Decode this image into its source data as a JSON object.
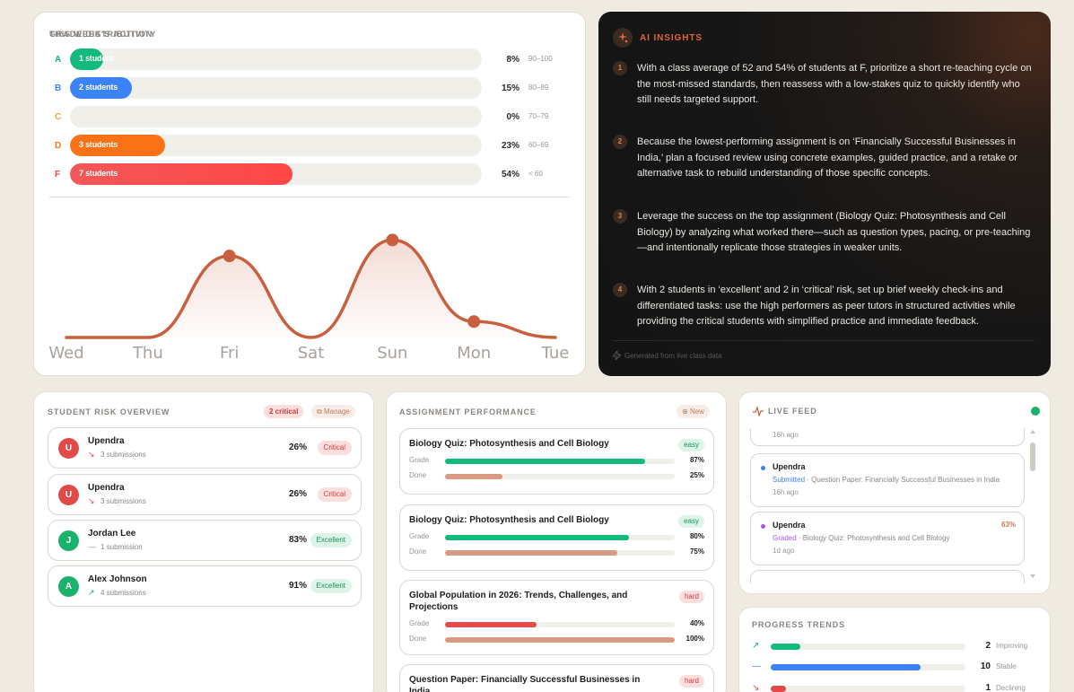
{
  "grade_distribution": {
    "title": "GRADE DISTRIBUTION",
    "rows": [
      {
        "letter": "A",
        "label": "1 student",
        "pct": "8%",
        "range": "90–100",
        "fraction": 0.08,
        "color": "#14b97c",
        "letter_color": "#14b97c"
      },
      {
        "letter": "B",
        "label": "2 students",
        "pct": "15%",
        "range": "80–89",
        "fraction": 0.15,
        "color": "#3b82f6",
        "letter_color": "#3b82f6"
      },
      {
        "letter": "C",
        "label": "",
        "pct": "0%",
        "range": "70–79",
        "fraction": 0.0,
        "color": "#f59e0b",
        "letter_color": "#f0a531"
      },
      {
        "letter": "D",
        "label": "3 students",
        "pct": "23%",
        "range": "60–69",
        "fraction": 0.23,
        "color": "#f97316",
        "letter_color": "#f97316"
      },
      {
        "letter": "F",
        "label": "7 students",
        "pct": "54%",
        "range": "< 60",
        "fraction": 0.54,
        "color": "#f03e3e",
        "letter_color": "#ef4444"
      }
    ]
  },
  "activity": {
    "title": "THIS WEEK'S ACTIVITY",
    "days": [
      "Wed",
      "Thu",
      "Fri",
      "Sat",
      "Sun",
      "Mon",
      "Tue"
    ],
    "values": [
      0,
      0,
      4.1,
      0,
      4.9,
      0.8,
      0
    ],
    "markers": [
      2,
      4,
      5
    ],
    "color": "#c8603f"
  },
  "ai_insights": {
    "title": "AI INSIGHTS",
    "items": [
      {
        "num": "1",
        "text": "With a class average of 52 and 54% of students at F, prioritize a short re-teaching cycle on the most-missed standards, then reassess with a low-stakes quiz to quickly identify who still needs targeted support."
      },
      {
        "num": "2",
        "text": "Because the lowest-performing assignment is on ‘Financially Successful Businesses in India,’ plan a focused review using concrete examples, guided practice, and a retake or alternative task to rebuild understanding of those specific concepts."
      },
      {
        "num": "3",
        "text": "Leverage the success on the top assignment (Biology Quiz: Photosynthesis and Cell Biology) by analyzing what worked there—such as question types, pacing, or pre-teaching—and intentionally replicate those strategies in weaker units."
      },
      {
        "num": "4",
        "text": "With 2 students in ‘excellent’ and 2 in ‘critical’ risk, set up brief weekly check-ins and differentiated tasks: use the high performers as peer tutors in structured activities while providing the critical students with simplified practice and immediate feedback."
      }
    ],
    "footer": "Generated from live class data"
  },
  "risk": {
    "title": "STUDENT RISK OVERVIEW",
    "critical_count": "2 critical",
    "manage_label": "Manage",
    "students": [
      {
        "initial": "U",
        "name": "Upendra",
        "trend": "↘",
        "trend_color": "#e24a4a",
        "subs": "3 submissions",
        "pct": "26%",
        "badge": "Critical",
        "avatar_color": "#e24a4a",
        "badge_bg": "#fbdede",
        "badge_fg": "#d33a3a"
      },
      {
        "initial": "U",
        "name": "Upendra",
        "trend": "↘",
        "trend_color": "#e24a4a",
        "subs": "3 submissions",
        "pct": "26%",
        "badge": "Critical",
        "avatar_color": "#e24a4a",
        "badge_bg": "#fbdede",
        "badge_fg": "#d33a3a"
      },
      {
        "initial": "J",
        "name": "Jordan Lee",
        "trend": "—",
        "trend_color": "#9a958f",
        "subs": "1 submission",
        "pct": "83%",
        "badge": "Excellent",
        "avatar_color": "#1bb36b",
        "badge_bg": "#dcf5e8",
        "badge_fg": "#17915a"
      },
      {
        "initial": "A",
        "name": "Alex Johnson",
        "trend": "↗",
        "trend_color": "#1bb36b",
        "subs": "4 submissions",
        "pct": "91%",
        "badge": "Excellent",
        "avatar_color": "#1bb36b",
        "badge_bg": "#dcf5e8",
        "badge_fg": "#17915a"
      }
    ]
  },
  "assignments": {
    "title": "ASSIGNMENT PERFORMANCE",
    "new_label": "New",
    "grade_label": "Grade",
    "done_label": "Done",
    "items": [
      {
        "title": "Biology Quiz: Photosynthesis and Cell Biology",
        "difficulty": "easy",
        "grade": "87%",
        "grade_frac": 0.87,
        "done": "25%",
        "done_frac": 0.25
      },
      {
        "title": "Biology Quiz: Photosynthesis and Cell Biology",
        "difficulty": "easy",
        "grade": "80%",
        "grade_frac": 0.8,
        "done": "75%",
        "done_frac": 0.75
      },
      {
        "title": "Global Population in 2026: Trends, Challenges, and Projections",
        "difficulty": "hard",
        "grade": "40%",
        "grade_frac": 0.4,
        "done": "100%",
        "done_frac": 1.0
      },
      {
        "title": "Question Paper: Financially Successful Businesses in India",
        "difficulty": "hard",
        "grade": "",
        "grade_frac": 0,
        "done": "",
        "done_frac": 0
      }
    ]
  },
  "live_feed": {
    "title": "LIVE FEED",
    "items": [
      {
        "name": "",
        "status": "",
        "detail": "",
        "time": "16h ago",
        "dot": "#3b82f6",
        "status_color": "#3b82f6",
        "score": ""
      },
      {
        "name": "Upendra",
        "status": "Submitted",
        "detail": " · Question Paper: Financially Successful Businesses in India",
        "time": "16h ago",
        "dot": "#3b82f6",
        "status_color": "#3b82f6",
        "score": ""
      },
      {
        "name": "Upendra",
        "status": "Graded",
        "detail": " · Biology Quiz: Photosynthesis and Cell Biology",
        "time": "1d ago",
        "dot": "#a855f7",
        "status_color": "#a855f7",
        "score": "63%"
      }
    ]
  },
  "trends": {
    "title": "PROGRESS TRENDS",
    "rows": [
      {
        "icon": "↗",
        "icon_color": "#14b97c",
        "count": "2",
        "label": "Improving",
        "fraction": 0.15,
        "color": "#14b97c"
      },
      {
        "icon": "—",
        "icon_color": "#3b82f6",
        "count": "10",
        "label": "Stable",
        "fraction": 0.77,
        "color": "#3b82f6"
      },
      {
        "icon": "↘",
        "icon_color": "#e24a4a",
        "count": "1",
        "label": "Declining",
        "fraction": 0.08,
        "color": "#e24a4a"
      }
    ]
  }
}
